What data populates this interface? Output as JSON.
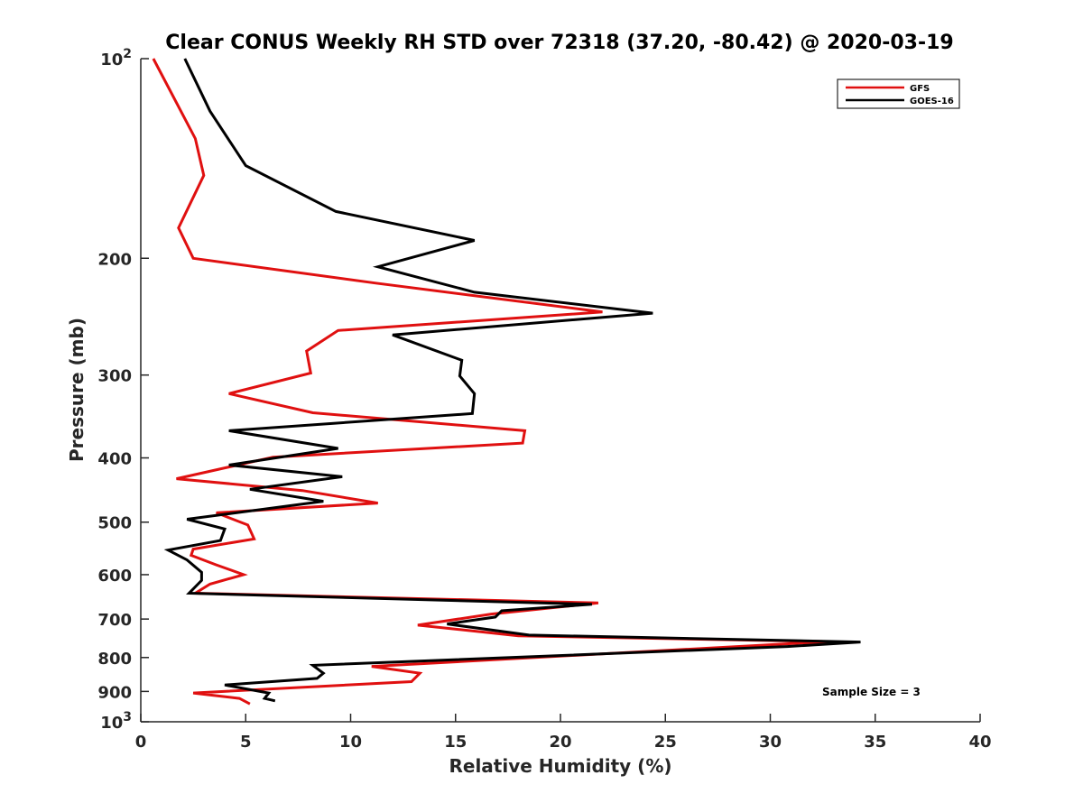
{
  "chart_data": {
    "type": "line",
    "title": "Clear CONUS Weekly RH STD over 72318 (37.20, -80.42) @ 2020-03-19",
    "xlabel": "Relative Humidity (%)",
    "ylabel": "Pressure (mb)",
    "xlim": [
      0,
      40
    ],
    "ylim": [
      100,
      1000
    ],
    "y_scale": "log",
    "y_reversed": true,
    "x_ticks": [
      0,
      5,
      10,
      15,
      20,
      25,
      30,
      35,
      40
    ],
    "x_tick_labels": [
      "0",
      "5",
      "10",
      "15",
      "20",
      "25",
      "30",
      "35",
      "40"
    ],
    "y_ticks": [
      100,
      200,
      300,
      400,
      500,
      600,
      700,
      800,
      900,
      1000
    ],
    "y_tick_labels": [
      {
        "base": "10",
        "exp": "2"
      },
      {
        "base": "200",
        "exp": ""
      },
      {
        "base": "300",
        "exp": ""
      },
      {
        "base": "400",
        "exp": ""
      },
      {
        "base": "500",
        "exp": ""
      },
      {
        "base": "600",
        "exp": ""
      },
      {
        "base": "700",
        "exp": ""
      },
      {
        "base": "800",
        "exp": ""
      },
      {
        "base": "900",
        "exp": ""
      },
      {
        "base": "10",
        "exp": "3"
      }
    ],
    "grid": false,
    "legend_position": "top-right",
    "annotation": "Sample Size = 3",
    "series": [
      {
        "name": "GFS",
        "color": "#e01010",
        "points": [
          [
            0.6,
            100
          ],
          [
            2.6,
            132
          ],
          [
            3.0,
            150
          ],
          [
            1.8,
            180
          ],
          [
            2.5,
            200
          ],
          [
            11.2,
            218
          ],
          [
            22.0,
            241
          ],
          [
            9.4,
            257
          ],
          [
            7.9,
            276
          ],
          [
            8.1,
            298
          ],
          [
            4.2,
            320
          ],
          [
            8.2,
            342
          ],
          [
            18.3,
            364
          ],
          [
            18.2,
            380
          ],
          [
            6.3,
            399
          ],
          [
            1.7,
            430
          ],
          [
            7.7,
            448
          ],
          [
            11.3,
            468
          ],
          [
            3.6,
            484
          ],
          [
            5.1,
            505
          ],
          [
            5.4,
            530
          ],
          [
            2.5,
            549
          ],
          [
            2.4,
            561
          ],
          [
            3.6,
            580
          ],
          [
            4.9,
            600
          ],
          [
            3.3,
            620
          ],
          [
            2.6,
            640
          ],
          [
            21.8,
            662
          ],
          [
            16.7,
            688
          ],
          [
            13.2,
            715
          ],
          [
            18.0,
            742
          ],
          [
            32.8,
            757
          ],
          [
            11.0,
            825
          ],
          [
            13.3,
            845
          ],
          [
            12.9,
            870
          ],
          [
            2.5,
            905
          ],
          [
            4.7,
            922
          ],
          [
            5.2,
            940
          ]
        ]
      },
      {
        "name": "GOES-16",
        "color": "#000000",
        "points": [
          [
            2.1,
            100
          ],
          [
            3.3,
            120
          ],
          [
            5.0,
            145
          ],
          [
            9.3,
            170
          ],
          [
            15.9,
            188
          ],
          [
            11.3,
            206
          ],
          [
            15.9,
            225
          ],
          [
            24.4,
            242
          ],
          [
            12.0,
            261
          ],
          [
            15.3,
            285
          ],
          [
            15.2,
            301
          ],
          [
            15.9,
            320
          ],
          [
            15.8,
            343
          ],
          [
            4.2,
            364
          ],
          [
            9.4,
            387
          ],
          [
            4.2,
            410
          ],
          [
            9.6,
            427
          ],
          [
            5.2,
            446
          ],
          [
            8.7,
            465
          ],
          [
            2.2,
            495
          ],
          [
            4.0,
            512
          ],
          [
            3.8,
            533
          ],
          [
            1.3,
            551
          ],
          [
            2.2,
            570
          ],
          [
            2.9,
            595
          ],
          [
            2.9,
            612
          ],
          [
            2.3,
            640
          ],
          [
            21.5,
            665
          ],
          [
            17.2,
            680
          ],
          [
            16.9,
            695
          ],
          [
            14.6,
            712
          ],
          [
            18.5,
            740
          ],
          [
            34.3,
            758
          ],
          [
            30.8,
            770
          ],
          [
            8.2,
            822
          ],
          [
            8.7,
            845
          ],
          [
            8.4,
            860
          ],
          [
            4.0,
            880
          ],
          [
            6.1,
            905
          ],
          [
            5.9,
            922
          ],
          [
            6.4,
            930
          ]
        ]
      }
    ]
  }
}
